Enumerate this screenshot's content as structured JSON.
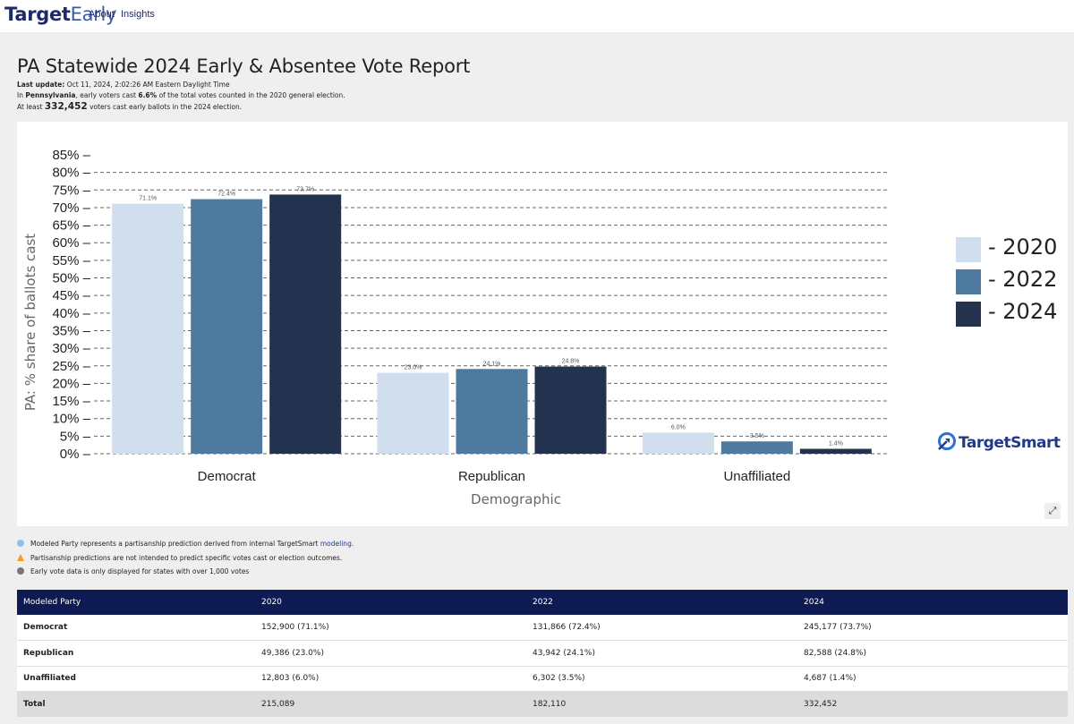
{
  "nav": {
    "brand_bold": "Target",
    "brand_light": "Early",
    "links": [
      "About",
      "Insights"
    ]
  },
  "header": {
    "title": "PA Statewide 2024 Early & Absentee Vote Report",
    "last_update_label": "Last update:",
    "last_update_value": "Oct 11, 2024, 2:02:26 AM Eastern Daylight Time",
    "line2_prefix": "In",
    "line2_state": "Pennsylvania",
    "line2_mid": ", early voters cast",
    "line2_pct": "6.6%",
    "line2_suffix": "of the total votes counted in the 2020 general election.",
    "line3_prefix": "At least",
    "line3_num": "332,452",
    "line3_suffix": "voters cast early ballots in the 2024 election."
  },
  "chart_data": {
    "type": "bar",
    "categories": [
      "Democrat",
      "Republican",
      "Unaffiliated"
    ],
    "series": [
      {
        "name": "2020",
        "color": "#d1deee",
        "values": [
          71.1,
          23.0,
          6.0
        ],
        "labels": [
          "71.1%",
          "23.0%",
          "6.0%"
        ]
      },
      {
        "name": "2022",
        "color": "#4f7a9f",
        "values": [
          72.4,
          24.1,
          3.5
        ],
        "labels": [
          "72.4%",
          "24.1%",
          "3.5%"
        ]
      },
      {
        "name": "2024",
        "color": "#22324f",
        "values": [
          73.7,
          24.8,
          1.4
        ],
        "labels": [
          "73.7%",
          "24.8%",
          "1.4%"
        ]
      }
    ],
    "xlabel": "Demographic",
    "ylabel": "PA: % share of ballots cast",
    "ylim": [
      0,
      85
    ],
    "yticks": [
      0,
      5,
      10,
      15,
      20,
      25,
      30,
      35,
      40,
      45,
      50,
      55,
      60,
      65,
      70,
      75,
      80,
      85
    ],
    "ytick_labels": [
      "0% –",
      "5% –",
      "10% –",
      "15% –",
      "20% –",
      "25% –",
      "30% –",
      "35% –",
      "40% –",
      "45% –",
      "50% –",
      "55% –",
      "60% –",
      "65% –",
      "70% –",
      "75% –",
      "80% –",
      "85% –"
    ],
    "grid": "dashed horizontal",
    "legend": {
      "position": "right",
      "labels": [
        "- 2020",
        "- 2022",
        "- 2024"
      ]
    }
  },
  "logo": {
    "text": "TargetSmart"
  },
  "notes": [
    {
      "icon": "info-icon",
      "text": "Modeled Party represents a partisanship prediction derived from internal TargetSmart",
      "link": "modeling",
      "tail": "."
    },
    {
      "icon": "warning-icon",
      "text": "Partisanship predictions are not intended to predict specific votes cast or election outcomes."
    },
    {
      "icon": "info-dark-icon",
      "text": "Early vote data is only displayed for states with over 1,000 votes"
    }
  ],
  "table": {
    "headers": [
      "Modeled Party",
      "2020",
      "2022",
      "2024"
    ],
    "rows": [
      [
        "Democrat",
        "152,900 (71.1%)",
        "131,866 (72.4%)",
        "245,177 (73.7%)"
      ],
      [
        "Republican",
        "49,386 (23.0%)",
        "43,942 (24.1%)",
        "82,588 (24.8%)"
      ],
      [
        "Unaffiliated",
        "12,803 (6.0%)",
        "6,302 (3.5%)",
        "4,687 (1.4%)"
      ]
    ],
    "total": [
      "Total",
      "215,089",
      "182,110",
      "332,452"
    ]
  }
}
